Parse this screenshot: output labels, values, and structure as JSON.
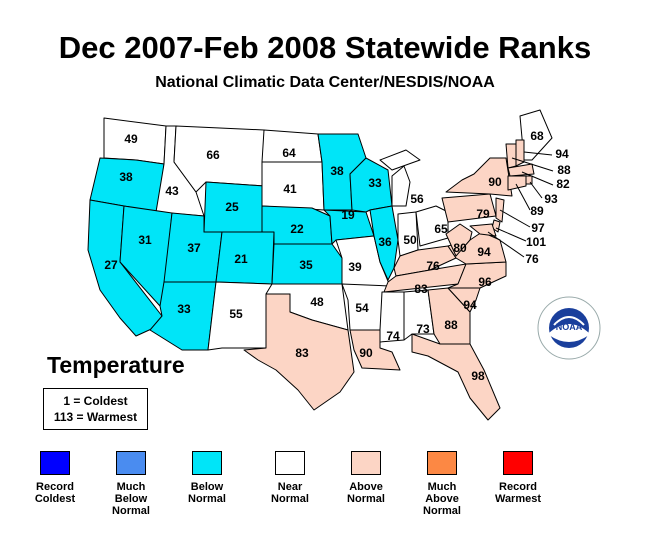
{
  "title": "Dec 2007-Feb 2008 Statewide Ranks",
  "subtitle": "National Climatic Data Center/NESDIS/NOAA",
  "variable": "Temperature",
  "key": {
    "coldest": "1 = Coldest",
    "warmest": "113 = Warmest"
  },
  "legend": [
    {
      "label": "Record Coldest",
      "color": "#0000ff"
    },
    {
      "label": "Much Below Normal",
      "color": "#4a8cf0"
    },
    {
      "label": "Below Normal",
      "color": "#00e5f8"
    },
    {
      "label": "Near Normal",
      "color": "#ffffff"
    },
    {
      "label": "Above Normal",
      "color": "#fcd5c5"
    },
    {
      "label": "Much Above Normal",
      "color": "#fc8844"
    },
    {
      "label": "Record Warmest",
      "color": "#ff0000"
    }
  ],
  "states": [
    {
      "code": "WA",
      "rank": 49,
      "category": "Near Normal"
    },
    {
      "code": "OR",
      "rank": 38,
      "category": "Below Normal"
    },
    {
      "code": "CA",
      "rank": 27,
      "category": "Below Normal"
    },
    {
      "code": "ID",
      "rank": 43,
      "category": "Near Normal"
    },
    {
      "code": "NV",
      "rank": 31,
      "category": "Below Normal"
    },
    {
      "code": "UT",
      "rank": 37,
      "category": "Below Normal"
    },
    {
      "code": "AZ",
      "rank": 33,
      "category": "Below Normal"
    },
    {
      "code": "MT",
      "rank": 66,
      "category": "Near Normal"
    },
    {
      "code": "WY",
      "rank": 25,
      "category": "Below Normal"
    },
    {
      "code": "CO",
      "rank": 21,
      "category": "Below Normal"
    },
    {
      "code": "NM",
      "rank": 55,
      "category": "Near Normal"
    },
    {
      "code": "ND",
      "rank": 64,
      "category": "Near Normal"
    },
    {
      "code": "SD",
      "rank": 41,
      "category": "Near Normal"
    },
    {
      "code": "NE",
      "rank": 22,
      "category": "Below Normal"
    },
    {
      "code": "KS",
      "rank": 35,
      "category": "Below Normal"
    },
    {
      "code": "OK",
      "rank": 48,
      "category": "Near Normal"
    },
    {
      "code": "TX",
      "rank": 83,
      "category": "Above Normal"
    },
    {
      "code": "MN",
      "rank": 38,
      "category": "Below Normal"
    },
    {
      "code": "IA",
      "rank": 19,
      "category": "Below Normal"
    },
    {
      "code": "MO",
      "rank": 39,
      "category": "Near Normal"
    },
    {
      "code": "AR",
      "rank": 54,
      "category": "Near Normal"
    },
    {
      "code": "LA",
      "rank": 90,
      "category": "Above Normal"
    },
    {
      "code": "WI",
      "rank": 33,
      "category": "Below Normal"
    },
    {
      "code": "IL",
      "rank": 36,
      "category": "Below Normal"
    },
    {
      "code": "MI",
      "rank": 56,
      "category": "Near Normal"
    },
    {
      "code": "IN",
      "rank": 50,
      "category": "Near Normal"
    },
    {
      "code": "OH",
      "rank": 65,
      "category": "Near Normal"
    },
    {
      "code": "KY",
      "rank": 76,
      "category": "Above Normal"
    },
    {
      "code": "TN",
      "rank": 83,
      "category": "Above Normal"
    },
    {
      "code": "MS",
      "rank": 74,
      "category": "Near Normal"
    },
    {
      "code": "AL",
      "rank": 73,
      "category": "Near Normal"
    },
    {
      "code": "GA",
      "rank": 88,
      "category": "Above Normal"
    },
    {
      "code": "FL",
      "rank": 98,
      "category": "Above Normal"
    },
    {
      "code": "SC",
      "rank": 94,
      "category": "Above Normal"
    },
    {
      "code": "NC",
      "rank": 96,
      "category": "Above Normal"
    },
    {
      "code": "VA",
      "rank": 94,
      "category": "Above Normal"
    },
    {
      "code": "WV",
      "rank": 80,
      "category": "Above Normal"
    },
    {
      "code": "PA",
      "rank": 79,
      "category": "Above Normal"
    },
    {
      "code": "NY",
      "rank": 90,
      "category": "Above Normal"
    },
    {
      "code": "ME",
      "rank": 68,
      "category": "Near Normal"
    },
    {
      "code": "NH",
      "rank": 94,
      "category": "Above Normal"
    },
    {
      "code": "VT",
      "rank": 88,
      "category": "Above Normal"
    },
    {
      "code": "MA",
      "rank": 82,
      "category": "Above Normal"
    },
    {
      "code": "RI",
      "rank": 93,
      "category": "Above Normal"
    },
    {
      "code": "CT",
      "rank": 89,
      "category": "Above Normal"
    },
    {
      "code": "NJ",
      "rank": 97,
      "category": "Above Normal"
    },
    {
      "code": "DE",
      "rank": 101,
      "category": "Above Normal"
    },
    {
      "code": "MD",
      "rank": 76,
      "category": "Above Normal"
    }
  ],
  "logo_text": "NOAA"
}
